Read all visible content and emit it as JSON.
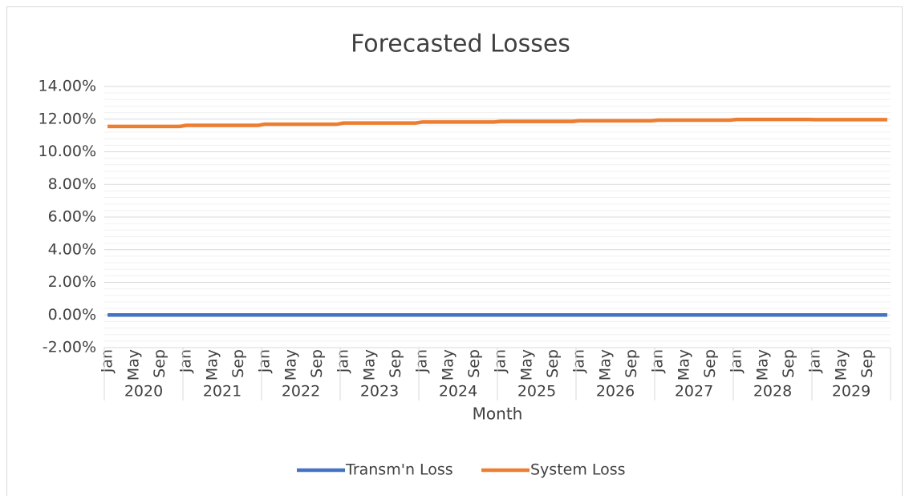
{
  "chart_data": {
    "type": "line",
    "title": "Forecasted Losses",
    "x_label": "Month",
    "categories": [
      "Jan",
      null,
      null,
      null,
      "May",
      null,
      null,
      null,
      "Sep",
      null,
      null,
      null,
      "Jan",
      null,
      null,
      null,
      "May",
      null,
      null,
      null,
      "Sep",
      null,
      null,
      null,
      "Jan",
      null,
      null,
      null,
      "May",
      null,
      null,
      null,
      "Sep",
      null,
      null,
      null,
      "Jan",
      null,
      null,
      null,
      "May",
      null,
      null,
      null,
      "Sep",
      null,
      null,
      null,
      "Jan",
      null,
      null,
      null,
      "May",
      null,
      null,
      null,
      "Sep",
      null,
      null,
      null,
      "Jan",
      null,
      null,
      null,
      "May",
      null,
      null,
      null,
      "Sep",
      null,
      null,
      null,
      "Jan",
      null,
      null,
      null,
      "May",
      null,
      null,
      null,
      "Sep",
      null,
      null,
      null,
      "Jan",
      null,
      null,
      null,
      "May",
      null,
      null,
      null,
      "Sep",
      null,
      null,
      null,
      "Jan",
      null,
      null,
      null,
      "May",
      null,
      null,
      null,
      "Sep",
      null,
      null,
      null,
      "Jan",
      null,
      null,
      null,
      "May",
      null,
      null,
      null,
      "Sep",
      null,
      null,
      null
    ],
    "category_groups": [
      "2020",
      "2021",
      "2022",
      "2023",
      "2024",
      "2025",
      "2026",
      "2027",
      "2028",
      "2029"
    ],
    "series": [
      {
        "name": "Transm'n Loss",
        "color": "#4472c4",
        "values": [
          0,
          0,
          0,
          0,
          0,
          0,
          0,
          0,
          0,
          0,
          0,
          0,
          0,
          0,
          0,
          0,
          0,
          0,
          0,
          0,
          0,
          0,
          0,
          0,
          0,
          0,
          0,
          0,
          0,
          0,
          0,
          0,
          0,
          0,
          0,
          0,
          0,
          0,
          0,
          0,
          0,
          0,
          0,
          0,
          0,
          0,
          0,
          0,
          0,
          0,
          0,
          0,
          0,
          0,
          0,
          0,
          0,
          0,
          0,
          0,
          0,
          0,
          0,
          0,
          0,
          0,
          0,
          0,
          0,
          0,
          0,
          0,
          0,
          0,
          0,
          0,
          0,
          0,
          0,
          0,
          0,
          0,
          0,
          0,
          0,
          0,
          0,
          0,
          0,
          0,
          0,
          0,
          0,
          0,
          0,
          0,
          0,
          0,
          0,
          0,
          0,
          0,
          0,
          0,
          0,
          0,
          0,
          0,
          0,
          0,
          0,
          0,
          0,
          0,
          0,
          0,
          0,
          0,
          0,
          0
        ]
      },
      {
        "name": "System Loss",
        "color": "#ed7d31",
        "values": [
          11.55,
          11.55,
          11.55,
          11.55,
          11.55,
          11.55,
          11.55,
          11.55,
          11.55,
          11.55,
          11.55,
          11.55,
          11.62,
          11.62,
          11.62,
          11.62,
          11.62,
          11.62,
          11.62,
          11.62,
          11.62,
          11.62,
          11.62,
          11.62,
          11.69,
          11.69,
          11.69,
          11.69,
          11.69,
          11.69,
          11.69,
          11.69,
          11.69,
          11.69,
          11.69,
          11.69,
          11.76,
          11.76,
          11.76,
          11.76,
          11.76,
          11.76,
          11.76,
          11.76,
          11.76,
          11.76,
          11.76,
          11.76,
          11.82,
          11.82,
          11.82,
          11.82,
          11.82,
          11.82,
          11.82,
          11.82,
          11.82,
          11.82,
          11.82,
          11.82,
          11.86,
          11.86,
          11.86,
          11.86,
          11.86,
          11.86,
          11.86,
          11.86,
          11.86,
          11.86,
          11.86,
          11.86,
          11.9,
          11.9,
          11.9,
          11.9,
          11.9,
          11.9,
          11.9,
          11.9,
          11.9,
          11.9,
          11.9,
          11.9,
          11.94,
          11.94,
          11.94,
          11.94,
          11.94,
          11.94,
          11.94,
          11.94,
          11.94,
          11.94,
          11.94,
          11.94,
          11.98,
          11.98,
          11.98,
          11.98,
          11.98,
          11.98,
          11.98,
          11.98,
          11.98,
          11.98,
          11.98,
          11.98,
          11.97,
          11.97,
          11.97,
          11.97,
          11.97,
          11.97,
          11.97,
          11.97,
          11.97,
          11.97,
          11.97,
          11.97
        ]
      }
    ],
    "ylim": [
      -2,
      14
    ],
    "yticks": [
      {
        "value": -2,
        "label": "-2.00%"
      },
      {
        "value": 0,
        "label": "0.00%"
      },
      {
        "value": 2,
        "label": "2.00%"
      },
      {
        "value": 4,
        "label": "4.00%"
      },
      {
        "value": 6,
        "label": "6.00%"
      },
      {
        "value": 8,
        "label": "8.00%"
      },
      {
        "value": 10,
        "label": "10.00%"
      },
      {
        "value": 12,
        "label": "12.00%"
      },
      {
        "value": 14,
        "label": "14.00%"
      }
    ],
    "grid": true,
    "minor_grid": true,
    "legend": "bottom"
  }
}
